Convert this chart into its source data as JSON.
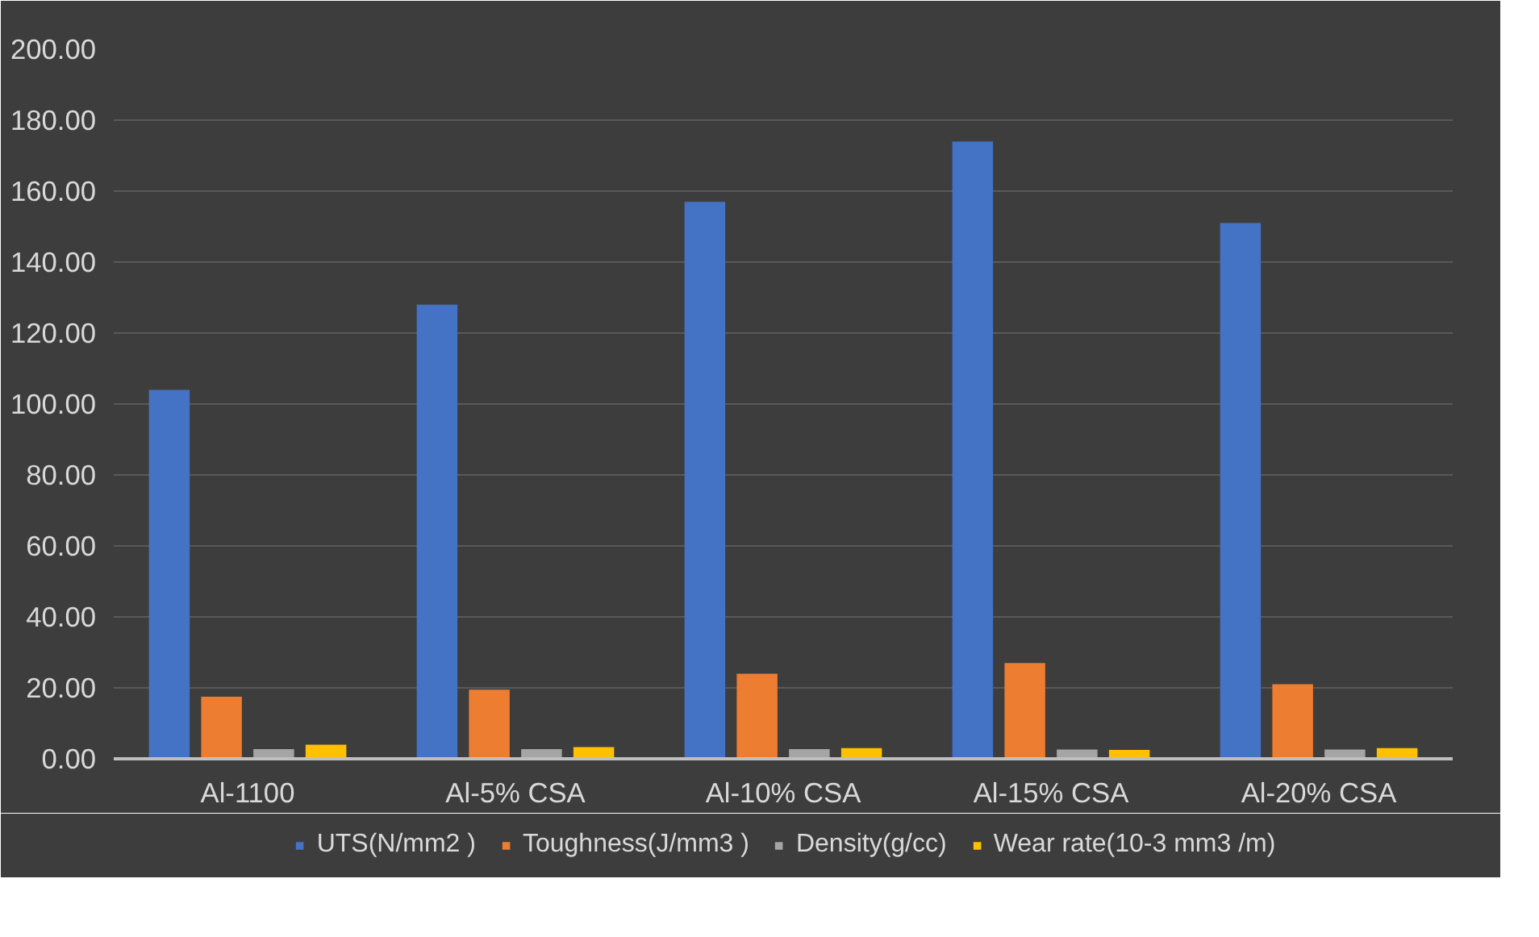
{
  "chart_data": {
    "type": "bar",
    "categories": [
      "Al-1100",
      "Al-5% CSA",
      "Al-10% CSA",
      "Al-15% CSA",
      "Al-20% CSA"
    ],
    "series": [
      {
        "name": "UTS(N/mm2 )",
        "color": "#4472c4",
        "values": [
          104,
          128,
          157,
          174,
          151
        ]
      },
      {
        "name": "Toughness(J/mm3 )",
        "color": "#ed7d31",
        "values": [
          17.5,
          19.5,
          24,
          27,
          21
        ]
      },
      {
        "name": "Density(g/cc)",
        "color": "#a5a5a5",
        "values": [
          2.7,
          2.7,
          2.7,
          2.6,
          2.6
        ]
      },
      {
        "name": "Wear rate(10-3 mm3 /m)",
        "color": "#ffc000",
        "values": [
          4,
          3.3,
          3,
          2.5,
          3
        ]
      }
    ],
    "ylim": [
      0,
      200
    ],
    "yticks": [
      {
        "value": 0,
        "label": "0.00"
      },
      {
        "value": 20,
        "label": "20.00"
      },
      {
        "value": 40,
        "label": "40.00"
      },
      {
        "value": 60,
        "label": "60.00"
      },
      {
        "value": 80,
        "label": "80.00"
      },
      {
        "value": 100,
        "label": "100.00"
      },
      {
        "value": 120,
        "label": "120.00"
      },
      {
        "value": 140,
        "label": "140.00"
      },
      {
        "value": 160,
        "label": "160.00"
      },
      {
        "value": 180,
        "label": "180.00"
      },
      {
        "value": 200,
        "label": "200.00"
      }
    ],
    "grid": "y",
    "legend": "bottom"
  }
}
